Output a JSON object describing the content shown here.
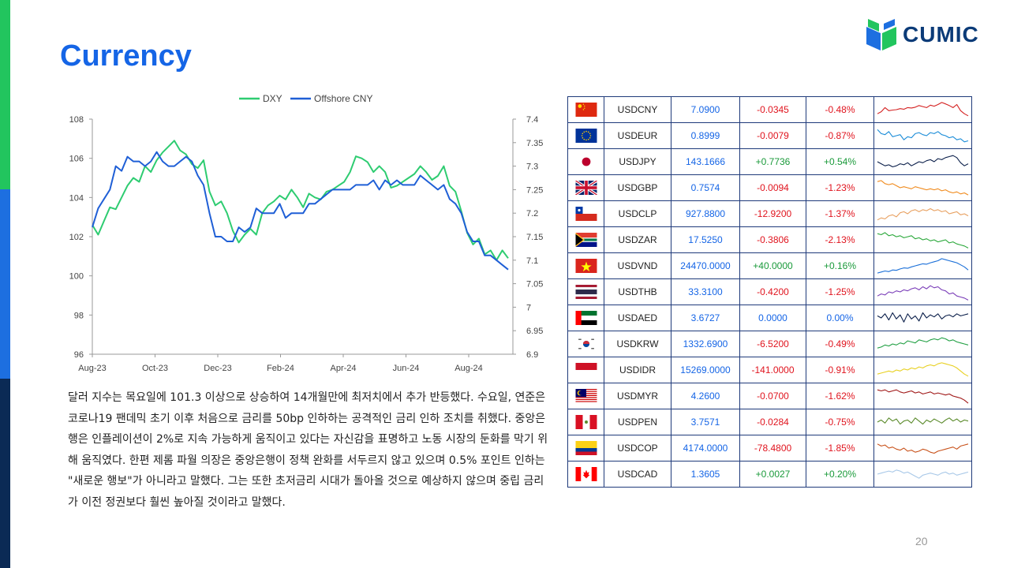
{
  "title": "Currency",
  "logo_text": "CUMIC",
  "page_number": "20",
  "paragraph": "달러 지수는 목요일에 101.3 이상으로 상승하여 14개월만에 최저치에서 추가 반등했다. 수요일, 연준은 코로나19 팬데믹 초기 이후 처음으로 금리를 50bp 인하하는 공격적인 금리 인하 조치를 취했다. 중앙은행은 인플레이션이 2%로 지속 가능하게 움직이고 있다는 자신감을 표명하고 노동 시장의 둔화를 막기 위해 움직였다. 한편 제롬 파월 의장은 중앙은행이 정책 완화를 서두르지 않고 있으며 0.5% 포인트 인하는 \"새로운 행보\"가 아니라고 말했다. 그는 또한 초저금리 시대가 돌아올 것으로 예상하지 않으며 중립 금리가 이전 정권보다 훨씬 높아질 것이라고 말했다.",
  "chart_data": {
    "type": "line",
    "title": "",
    "legend_position": "top",
    "x_tick_labels": [
      "Aug-23",
      "Oct-23",
      "Dec-23",
      "Feb-24",
      "Apr-24",
      "Jun-24",
      "Aug-24"
    ],
    "y_left": {
      "range": [
        96,
        108
      ],
      "ticks": [
        "96",
        "98",
        "100",
        "102",
        "104",
        "106",
        "108"
      ]
    },
    "y_right": {
      "range": [
        6.9,
        7.4
      ],
      "ticks": [
        "6.9",
        "6.95",
        "7",
        "7.05",
        "7.1",
        "7.15",
        "7.2",
        "7.25",
        "7.3",
        "7.35",
        "7.4"
      ]
    },
    "series": [
      {
        "name": "DXY",
        "axis": "left",
        "color": "#2ecc71",
        "values": [
          102.6,
          102.1,
          102.8,
          103.5,
          103.4,
          104.0,
          104.6,
          105.0,
          104.8,
          105.6,
          105.3,
          105.9,
          106.3,
          106.6,
          106.9,
          106.4,
          106.2,
          105.7,
          105.5,
          105.9,
          104.3,
          103.6,
          103.8,
          103.2,
          102.3,
          101.7,
          102.1,
          102.4,
          102.1,
          103.2,
          103.6,
          103.8,
          104.1,
          103.9,
          104.4,
          104.0,
          103.5,
          104.2,
          104.0,
          103.9,
          104.3,
          104.4,
          104.6,
          104.8,
          105.3,
          106.1,
          106.0,
          105.8,
          105.3,
          105.6,
          105.3,
          104.5,
          104.6,
          104.8,
          105.0,
          105.2,
          105.6,
          105.3,
          104.9,
          105.1,
          105.6,
          104.6,
          104.3,
          103.3,
          102.2,
          101.6,
          101.9,
          101.1,
          101.3,
          100.8,
          101.3,
          100.9
        ]
      },
      {
        "name": "Offshore CNY",
        "axis": "right",
        "color": "#1f5fd6",
        "values": [
          7.17,
          7.21,
          7.23,
          7.25,
          7.3,
          7.29,
          7.32,
          7.31,
          7.31,
          7.3,
          7.31,
          7.33,
          7.31,
          7.3,
          7.3,
          7.31,
          7.32,
          7.31,
          7.28,
          7.26,
          7.2,
          7.15,
          7.15,
          7.14,
          7.14,
          7.17,
          7.16,
          7.17,
          7.21,
          7.2,
          7.2,
          7.2,
          7.22,
          7.19,
          7.2,
          7.2,
          7.2,
          7.22,
          7.22,
          7.23,
          7.24,
          7.25,
          7.25,
          7.25,
          7.25,
          7.26,
          7.26,
          7.26,
          7.27,
          7.25,
          7.27,
          7.26,
          7.27,
          7.26,
          7.26,
          7.26,
          7.28,
          7.27,
          7.26,
          7.25,
          7.26,
          7.23,
          7.22,
          7.2,
          7.16,
          7.14,
          7.14,
          7.11,
          7.11,
          7.1,
          7.09,
          7.08
        ]
      }
    ]
  },
  "table": [
    {
      "pair": "USDCNY",
      "flag": "cn",
      "rate": "7.0900",
      "change": "-0.0345",
      "pct": "-0.48%",
      "dir": "neg",
      "spark_color": "#d42020",
      "spark": [
        0.7,
        0.6,
        0.4,
        0.55,
        0.52,
        0.5,
        0.45,
        0.48,
        0.4,
        0.42,
        0.38,
        0.3,
        0.35,
        0.4,
        0.28,
        0.33,
        0.25,
        0.15,
        0.22,
        0.3,
        0.4,
        0.25,
        0.55,
        0.7,
        0.8
      ]
    },
    {
      "pair": "USDEUR",
      "flag": "eu",
      "rate": "0.8999",
      "change": "-0.0079",
      "pct": "-0.87%",
      "dir": "neg",
      "spark_color": "#1a8cd8",
      "spark": [
        0.2,
        0.4,
        0.45,
        0.3,
        0.55,
        0.5,
        0.45,
        0.7,
        0.55,
        0.6,
        0.4,
        0.35,
        0.45,
        0.5,
        0.35,
        0.4,
        0.3,
        0.45,
        0.5,
        0.6,
        0.55,
        0.7,
        0.65,
        0.8,
        0.75
      ]
    },
    {
      "pair": "USDJPY",
      "flag": "jp",
      "rate": "143.1666",
      "change": "+0.7736",
      "pct": "+0.54%",
      "dir": "pos",
      "spark_color": "#0b1f4a",
      "spark": [
        0.5,
        0.6,
        0.7,
        0.65,
        0.75,
        0.7,
        0.6,
        0.65,
        0.55,
        0.7,
        0.6,
        0.5,
        0.55,
        0.45,
        0.4,
        0.5,
        0.35,
        0.4,
        0.3,
        0.25,
        0.2,
        0.3,
        0.55,
        0.7,
        0.6
      ]
    },
    {
      "pair": "USDGBP",
      "flag": "gb",
      "rate": "0.7574",
      "change": "-0.0094",
      "pct": "-1.23%",
      "dir": "neg",
      "spark_color": "#f08a1c",
      "spark": [
        0.2,
        0.15,
        0.3,
        0.35,
        0.3,
        0.4,
        0.5,
        0.45,
        0.5,
        0.55,
        0.45,
        0.5,
        0.55,
        0.6,
        0.55,
        0.6,
        0.55,
        0.65,
        0.6,
        0.7,
        0.75,
        0.7,
        0.8,
        0.75,
        0.85
      ]
    },
    {
      "pair": "USDCLP",
      "flag": "cl",
      "rate": "927.8800",
      "change": "-12.9200",
      "pct": "-1.37%",
      "dir": "neg",
      "spark_color": "#e8a060",
      "spark": [
        0.8,
        0.7,
        0.75,
        0.6,
        0.55,
        0.65,
        0.45,
        0.4,
        0.5,
        0.35,
        0.3,
        0.4,
        0.3,
        0.35,
        0.25,
        0.35,
        0.3,
        0.4,
        0.35,
        0.5,
        0.45,
        0.4,
        0.55,
        0.5,
        0.6
      ]
    },
    {
      "pair": "USDZAR",
      "flag": "za",
      "rate": "17.5250",
      "change": "-0.3806",
      "pct": "-2.13%",
      "dir": "neg",
      "spark_color": "#2aa83a",
      "spark": [
        0.2,
        0.25,
        0.15,
        0.3,
        0.25,
        0.35,
        0.3,
        0.4,
        0.35,
        0.3,
        0.45,
        0.4,
        0.5,
        0.45,
        0.55,
        0.5,
        0.6,
        0.55,
        0.5,
        0.65,
        0.6,
        0.7,
        0.75,
        0.8,
        0.9
      ]
    },
    {
      "pair": "USDVND",
      "flag": "vn",
      "rate": "24470.0000",
      "change": "+40.0000",
      "pct": "+0.16%",
      "dir": "pos",
      "spark_color": "#1a6fd8",
      "spark": [
        0.85,
        0.8,
        0.75,
        0.78,
        0.7,
        0.72,
        0.65,
        0.6,
        0.62,
        0.55,
        0.5,
        0.45,
        0.4,
        0.42,
        0.35,
        0.3,
        0.25,
        0.15,
        0.2,
        0.25,
        0.3,
        0.35,
        0.45,
        0.55,
        0.7
      ]
    },
    {
      "pair": "USDTHB",
      "flag": "th",
      "rate": "33.3100",
      "change": "-0.4200",
      "pct": "-1.25%",
      "dir": "neg",
      "spark_color": "#7a3db8",
      "spark": [
        0.7,
        0.6,
        0.65,
        0.5,
        0.55,
        0.45,
        0.5,
        0.4,
        0.45,
        0.35,
        0.3,
        0.4,
        0.25,
        0.35,
        0.2,
        0.3,
        0.25,
        0.4,
        0.45,
        0.6,
        0.55,
        0.7,
        0.75,
        0.8,
        0.9
      ]
    },
    {
      "pair": "USDAED",
      "flag": "ae",
      "rate": "3.6727",
      "change": "0.0000",
      "pct": "0.00%",
      "dir": "flat",
      "spark_color": "#0b1f4a",
      "spark": [
        0.4,
        0.5,
        0.3,
        0.6,
        0.25,
        0.55,
        0.35,
        0.7,
        0.3,
        0.55,
        0.4,
        0.65,
        0.25,
        0.5,
        0.35,
        0.45,
        0.3,
        0.55,
        0.4,
        0.35,
        0.45,
        0.3,
        0.4,
        0.35,
        0.3
      ]
    },
    {
      "pair": "USDKRW",
      "flag": "kr",
      "rate": "1332.6900",
      "change": "-6.5200",
      "pct": "-0.49%",
      "dir": "neg",
      "spark_color": "#22a044",
      "spark": [
        0.7,
        0.65,
        0.55,
        0.6,
        0.5,
        0.55,
        0.45,
        0.5,
        0.35,
        0.4,
        0.45,
        0.3,
        0.35,
        0.4,
        0.3,
        0.25,
        0.3,
        0.2,
        0.25,
        0.35,
        0.3,
        0.4,
        0.45,
        0.5,
        0.55
      ]
    },
    {
      "pair": "USDIDR",
      "flag": "id",
      "rate": "15269.0000",
      "change": "-141.0000",
      "pct": "-0.91%",
      "dir": "neg",
      "spark_color": "#e8d020",
      "spark": [
        0.7,
        0.65,
        0.6,
        0.55,
        0.6,
        0.5,
        0.55,
        0.45,
        0.5,
        0.4,
        0.45,
        0.35,
        0.4,
        0.3,
        0.25,
        0.3,
        0.2,
        0.15,
        0.2,
        0.25,
        0.3,
        0.4,
        0.55,
        0.7,
        0.8
      ]
    },
    {
      "pair": "USDMYR",
      "flag": "my",
      "rate": "4.2600",
      "change": "-0.0700",
      "pct": "-1.62%",
      "dir": "neg",
      "spark_color": "#a01818",
      "spark": [
        0.2,
        0.25,
        0.2,
        0.3,
        0.25,
        0.2,
        0.3,
        0.35,
        0.3,
        0.25,
        0.35,
        0.3,
        0.4,
        0.35,
        0.3,
        0.4,
        0.35,
        0.4,
        0.45,
        0.4,
        0.5,
        0.55,
        0.6,
        0.7,
        0.85
      ]
    },
    {
      "pair": "USDPEN",
      "flag": "pe",
      "rate": "3.7571",
      "change": "-0.0284",
      "pct": "-0.75%",
      "dir": "neg",
      "spark_color": "#5a8a2a",
      "spark": [
        0.5,
        0.4,
        0.55,
        0.3,
        0.45,
        0.35,
        0.6,
        0.45,
        0.4,
        0.55,
        0.3,
        0.45,
        0.6,
        0.4,
        0.5,
        0.35,
        0.45,
        0.55,
        0.4,
        0.3,
        0.45,
        0.35,
        0.5,
        0.4,
        0.45
      ]
    },
    {
      "pair": "USDCOP",
      "flag": "co",
      "rate": "4174.0000",
      "change": "-78.4800",
      "pct": "-1.85%",
      "dir": "neg",
      "spark_color": "#c85018",
      "spark": [
        0.3,
        0.4,
        0.35,
        0.5,
        0.45,
        0.55,
        0.6,
        0.5,
        0.65,
        0.6,
        0.7,
        0.65,
        0.55,
        0.6,
        0.7,
        0.75,
        0.65,
        0.6,
        0.55,
        0.5,
        0.45,
        0.55,
        0.4,
        0.35,
        0.3
      ]
    },
    {
      "pair": "USDCAD",
      "flag": "ca",
      "rate": "1.3605",
      "change": "+0.0027",
      "pct": "+0.20%",
      "dir": "pos",
      "spark_color": "#a8c8e8",
      "spark": [
        0.5,
        0.45,
        0.4,
        0.35,
        0.4,
        0.3,
        0.35,
        0.45,
        0.4,
        0.5,
        0.6,
        0.7,
        0.55,
        0.5,
        0.45,
        0.5,
        0.55,
        0.45,
        0.4,
        0.5,
        0.45,
        0.55,
        0.5,
        0.45,
        0.4
      ]
    }
  ]
}
